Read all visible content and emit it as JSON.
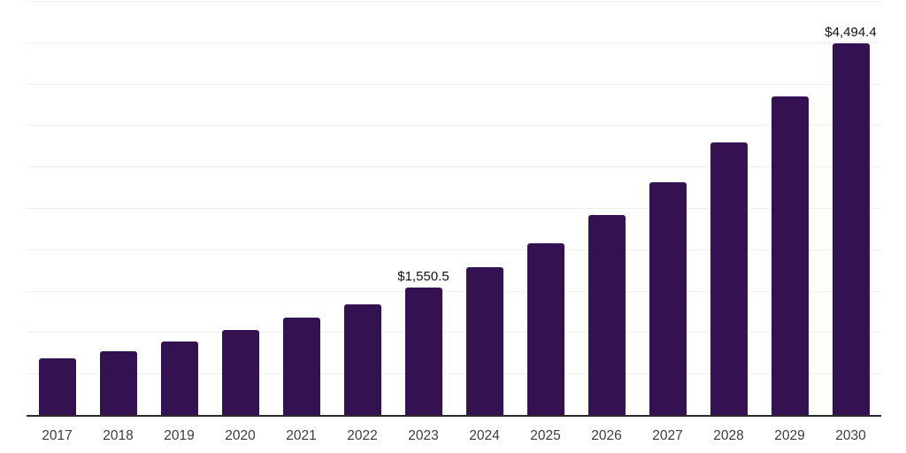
{
  "chart_data": {
    "type": "bar",
    "title": "",
    "xlabel": "",
    "ylabel": "",
    "categories": [
      "2017",
      "2018",
      "2019",
      "2020",
      "2021",
      "2022",
      "2023",
      "2024",
      "2025",
      "2026",
      "2027",
      "2028",
      "2029",
      "2030"
    ],
    "values": [
      695,
      780,
      895,
      1035,
      1185,
      1345,
      1550.5,
      1795,
      2085,
      2425,
      2820,
      3300,
      3855,
      4494.4
    ],
    "data_labels": [
      null,
      null,
      null,
      null,
      null,
      null,
      "$1,550.5",
      null,
      null,
      null,
      null,
      null,
      null,
      "$4,494.4"
    ],
    "ylim": [
      0,
      5000
    ],
    "gridline_step": 500,
    "grid": "horizontal",
    "legend": "none",
    "y_axis_tick_labels": "none",
    "colors": {
      "bar": "#341150",
      "gridline": "#f0f0f0",
      "axis_line": "#2b2b2b",
      "data_label": "#111111",
      "tick_label": "#3d3d3d",
      "background": "#ffffff"
    }
  }
}
